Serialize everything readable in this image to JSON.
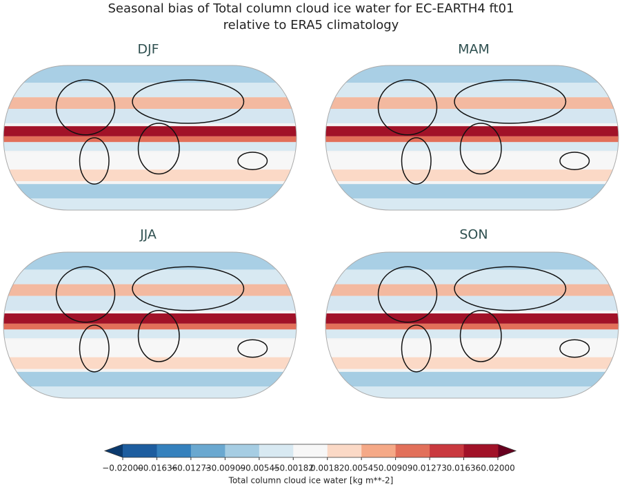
{
  "title": [
    "Seasonal bias of Total column cloud ice water for EC-EARTH4 ft01",
    "relative to ERA5 climatology"
  ],
  "panels": [
    {
      "label": "DJF"
    },
    {
      "label": "MAM"
    },
    {
      "label": "JJA"
    },
    {
      "label": "SON"
    }
  ],
  "colorbar": {
    "label": "Total column cloud ice water [kg m**-2]",
    "ticks": [
      {
        "value": -0.02,
        "label": "−0.02000"
      },
      {
        "value": -0.01636,
        "label": "−0.01636"
      },
      {
        "value": -0.01273,
        "label": "−0.01273"
      },
      {
        "value": -0.00909,
        "label": "−0.00909"
      },
      {
        "value": -0.00545,
        "label": "−0.00545"
      },
      {
        "value": -0.00182,
        "label": "−0.00182"
      },
      {
        "value": 0.00182,
        "label": "0.00182"
      },
      {
        "value": 0.00545,
        "label": "0.00545"
      },
      {
        "value": 0.00909,
        "label": "0.00909"
      },
      {
        "value": 0.01273,
        "label": "0.01273"
      },
      {
        "value": 0.01636,
        "label": "0.01636"
      },
      {
        "value": 0.02,
        "label": "0.02000"
      }
    ],
    "colors": [
      "#1d5d9f",
      "#3581bd",
      "#6aa8d0",
      "#a6cde3",
      "#d8e9f2",
      "#f7f7f7",
      "#fbd9c6",
      "#f5a987",
      "#e2705a",
      "#c9393f",
      "#a11228"
    ],
    "extend_colors": [
      "#0b3a6e",
      "#67001f"
    ]
  }
}
